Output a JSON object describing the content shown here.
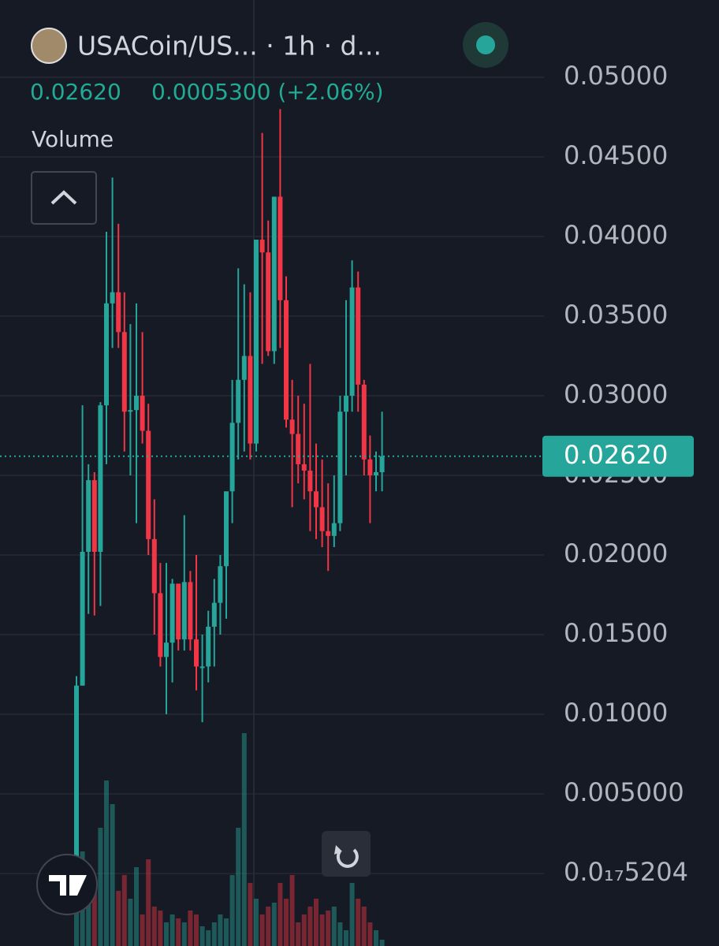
{
  "header": {
    "title": "USACoin/US... · 1h · d...",
    "price": "0.02620",
    "change": "0.0005300 (+2.06%)"
  },
  "chart_data": {
    "type": "candlestick",
    "up_color": "#26a69a",
    "down_color": "#f23645",
    "open": [
      0.0004,
      0.0118,
      0.0202,
      0.0247,
      0.0202,
      0.0294,
      0.0358,
      0.0365,
      0.034,
      0.029,
      0.0291,
      0.03,
      0.0278,
      0.021,
      0.0176,
      0.0136,
      0.0145,
      0.0182,
      0.0147,
      0.0183,
      0.0147,
      0.013,
      0.013,
      0.0155,
      0.017,
      0.0193,
      0.024,
      0.0283,
      0.031,
      0.0325,
      0.027,
      0.0398,
      0.039,
      0.0328,
      0.0425,
      0.036,
      0.0285,
      0.0276,
      0.0257,
      0.0253,
      0.024,
      0.023,
      0.0215,
      0.0212,
      0.022,
      0.029,
      0.03,
      0.0368,
      0.0307,
      0.026,
      0.025,
      0.0252
    ],
    "high": [
      0.0124,
      0.0294,
      0.0257,
      0.0252,
      0.0296,
      0.0403,
      0.0437,
      0.0408,
      0.0365,
      0.0345,
      0.0358,
      0.034,
      0.0295,
      0.0235,
      0.0195,
      0.0195,
      0.0185,
      0.0182,
      0.0225,
      0.019,
      0.02,
      0.015,
      0.0165,
      0.0185,
      0.02,
      0.0235,
      0.031,
      0.038,
      0.037,
      0.0365,
      0.0398,
      0.0465,
      0.041,
      0.0425,
      0.048,
      0.0375,
      0.031,
      0.03,
      0.0295,
      0.032,
      0.027,
      0.026,
      0.0245,
      0.025,
      0.03,
      0.036,
      0.0385,
      0.0378,
      0.031,
      0.0275,
      0.0265,
      0.029
    ],
    "low": [
      0.0003,
      0.0118,
      0.0163,
      0.0162,
      0.0168,
      0.0257,
      0.033,
      0.033,
      0.0265,
      0.025,
      0.022,
      0.027,
      0.02,
      0.015,
      0.013,
      0.01,
      0.012,
      0.014,
      0.014,
      0.014,
      0.0115,
      0.0095,
      0.012,
      0.013,
      0.015,
      0.016,
      0.022,
      0.026,
      0.0265,
      0.026,
      0.0265,
      0.032,
      0.0325,
      0.032,
      0.033,
      0.028,
      0.023,
      0.0245,
      0.0235,
      0.0215,
      0.021,
      0.0205,
      0.019,
      0.0205,
      0.0215,
      0.025,
      0.029,
      0.029,
      0.025,
      0.022,
      0.024,
      0.024
    ],
    "close": [
      0.0118,
      0.0202,
      0.0247,
      0.0202,
      0.0294,
      0.0358,
      0.0365,
      0.034,
      0.029,
      0.0291,
      0.03,
      0.0278,
      0.021,
      0.0176,
      0.0136,
      0.0145,
      0.0182,
      0.0147,
      0.0183,
      0.0147,
      0.013,
      0.013,
      0.0155,
      0.017,
      0.0193,
      0.024,
      0.0283,
      0.031,
      0.0325,
      0.027,
      0.0398,
      0.039,
      0.0328,
      0.0425,
      0.036,
      0.0285,
      0.0276,
      0.0257,
      0.0253,
      0.024,
      0.023,
      0.0215,
      0.0212,
      0.022,
      0.029,
      0.03,
      0.0368,
      0.0307,
      0.026,
      0.025,
      0.0252,
      0.0262
    ],
    "volume_series": {
      "name": "Volume",
      "values": [
        240,
        120,
        60,
        80,
        150,
        210,
        180,
        70,
        90,
        60,
        100,
        40,
        110,
        50,
        45,
        30,
        40,
        35,
        30,
        45,
        40,
        25,
        20,
        30,
        40,
        35,
        90,
        150,
        270,
        80,
        60,
        40,
        50,
        55,
        80,
        60,
        90,
        30,
        40,
        50,
        60,
        40,
        45,
        50,
        30,
        20,
        80,
        60,
        50,
        30,
        20,
        8
      ]
    },
    "volume_ylim": [
      0,
      300
    ],
    "ylim": [
      -0.00455,
      0.05485
    ],
    "yticks": [
      {
        "value": 0.05,
        "label": "0.05000"
      },
      {
        "value": 0.045,
        "label": "0.04500"
      },
      {
        "value": 0.04,
        "label": "0.04000"
      },
      {
        "value": 0.035,
        "label": "0.03500"
      },
      {
        "value": 0.03,
        "label": "0.03000"
      },
      {
        "value": 0.025,
        "label": "0.02500"
      },
      {
        "value": 0.02,
        "label": "0.02000"
      },
      {
        "value": 0.015,
        "label": "0.01500"
      },
      {
        "value": 0.01,
        "label": "0.01000"
      },
      {
        "value": 0.005,
        "label": "0.005000"
      },
      {
        "value": 5.204e-18,
        "label": "0.0₁₇5204"
      }
    ],
    "grid": true,
    "last_price": {
      "value": 0.0262,
      "label": "0.02620"
    }
  }
}
